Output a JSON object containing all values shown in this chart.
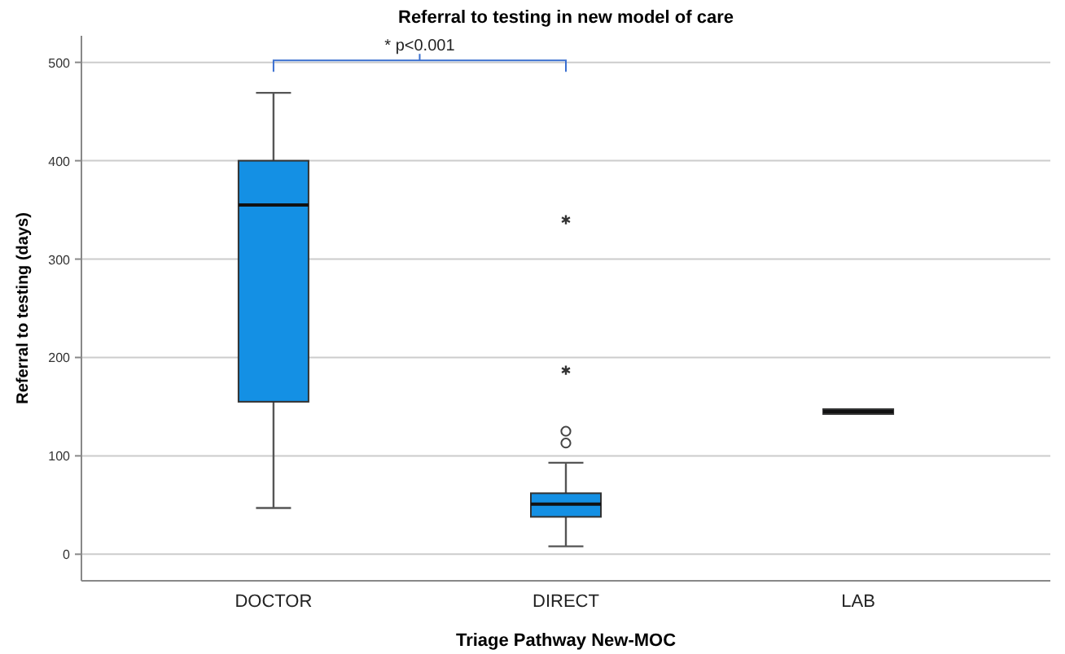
{
  "chart_data": {
    "type": "box",
    "title": "Referral to testing in new model of care",
    "xlabel": "Triage Pathway New-MOC",
    "ylabel": "Referral to testing (days)",
    "categories": [
      "DOCTOR",
      "DIRECT",
      "LAB"
    ],
    "boxes": [
      {
        "low": 47,
        "q1": 155,
        "median": 355,
        "q3": 400,
        "high": 469
      },
      {
        "low": 8,
        "q1": 38,
        "median": 51,
        "q3": 62,
        "high": 93,
        "outliers": [
          113,
          125,
          187,
          340
        ]
      },
      {
        "low": 145,
        "q1": 145,
        "median": 145,
        "q3": 145,
        "high": 145
      }
    ],
    "color": "#1490e4",
    "ylim": [
      -27,
      527
    ],
    "yticks": [
      0,
      100,
      200,
      300,
      400,
      500
    ],
    "grid": "y",
    "annotations": [
      "* p<0.001"
    ]
  }
}
